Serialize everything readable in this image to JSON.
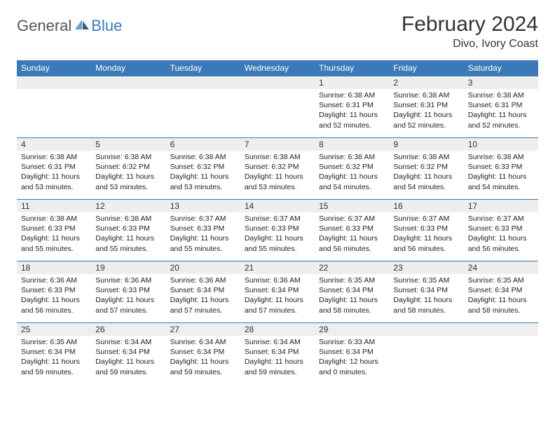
{
  "brand": {
    "general": "General",
    "blue": "Blue"
  },
  "title": "February 2024",
  "location": "Divo, Ivory Coast",
  "style": {
    "header_bg": "#3a7ab8",
    "header_fg": "#ffffff",
    "daynum_bg": "#eeeeee",
    "row_divider": "#3a7ab8",
    "title_fontsize": 30,
    "location_fontsize": 16,
    "th_fontsize": 12,
    "cell_fontsize": 10.5
  },
  "week_headers": [
    "Sunday",
    "Monday",
    "Tuesday",
    "Wednesday",
    "Thursday",
    "Friday",
    "Saturday"
  ],
  "weeks": [
    [
      null,
      null,
      null,
      null,
      {
        "n": "1",
        "sr": "6:38 AM",
        "ss": "6:31 PM",
        "dl": "11 hours and 52 minutes."
      },
      {
        "n": "2",
        "sr": "6:38 AM",
        "ss": "6:31 PM",
        "dl": "11 hours and 52 minutes."
      },
      {
        "n": "3",
        "sr": "6:38 AM",
        "ss": "6:31 PM",
        "dl": "11 hours and 52 minutes."
      }
    ],
    [
      {
        "n": "4",
        "sr": "6:38 AM",
        "ss": "6:31 PM",
        "dl": "11 hours and 53 minutes."
      },
      {
        "n": "5",
        "sr": "6:38 AM",
        "ss": "6:32 PM",
        "dl": "11 hours and 53 minutes."
      },
      {
        "n": "6",
        "sr": "6:38 AM",
        "ss": "6:32 PM",
        "dl": "11 hours and 53 minutes."
      },
      {
        "n": "7",
        "sr": "6:38 AM",
        "ss": "6:32 PM",
        "dl": "11 hours and 53 minutes."
      },
      {
        "n": "8",
        "sr": "6:38 AM",
        "ss": "6:32 PM",
        "dl": "11 hours and 54 minutes."
      },
      {
        "n": "9",
        "sr": "6:38 AM",
        "ss": "6:32 PM",
        "dl": "11 hours and 54 minutes."
      },
      {
        "n": "10",
        "sr": "6:38 AM",
        "ss": "6:33 PM",
        "dl": "11 hours and 54 minutes."
      }
    ],
    [
      {
        "n": "11",
        "sr": "6:38 AM",
        "ss": "6:33 PM",
        "dl": "11 hours and 55 minutes."
      },
      {
        "n": "12",
        "sr": "6:38 AM",
        "ss": "6:33 PM",
        "dl": "11 hours and 55 minutes."
      },
      {
        "n": "13",
        "sr": "6:37 AM",
        "ss": "6:33 PM",
        "dl": "11 hours and 55 minutes."
      },
      {
        "n": "14",
        "sr": "6:37 AM",
        "ss": "6:33 PM",
        "dl": "11 hours and 55 minutes."
      },
      {
        "n": "15",
        "sr": "6:37 AM",
        "ss": "6:33 PM",
        "dl": "11 hours and 56 minutes."
      },
      {
        "n": "16",
        "sr": "6:37 AM",
        "ss": "6:33 PM",
        "dl": "11 hours and 56 minutes."
      },
      {
        "n": "17",
        "sr": "6:37 AM",
        "ss": "6:33 PM",
        "dl": "11 hours and 56 minutes."
      }
    ],
    [
      {
        "n": "18",
        "sr": "6:36 AM",
        "ss": "6:33 PM",
        "dl": "11 hours and 56 minutes."
      },
      {
        "n": "19",
        "sr": "6:36 AM",
        "ss": "6:33 PM",
        "dl": "11 hours and 57 minutes."
      },
      {
        "n": "20",
        "sr": "6:36 AM",
        "ss": "6:34 PM",
        "dl": "11 hours and 57 minutes."
      },
      {
        "n": "21",
        "sr": "6:36 AM",
        "ss": "6:34 PM",
        "dl": "11 hours and 57 minutes."
      },
      {
        "n": "22",
        "sr": "6:35 AM",
        "ss": "6:34 PM",
        "dl": "11 hours and 58 minutes."
      },
      {
        "n": "23",
        "sr": "6:35 AM",
        "ss": "6:34 PM",
        "dl": "11 hours and 58 minutes."
      },
      {
        "n": "24",
        "sr": "6:35 AM",
        "ss": "6:34 PM",
        "dl": "11 hours and 58 minutes."
      }
    ],
    [
      {
        "n": "25",
        "sr": "6:35 AM",
        "ss": "6:34 PM",
        "dl": "11 hours and 59 minutes."
      },
      {
        "n": "26",
        "sr": "6:34 AM",
        "ss": "6:34 PM",
        "dl": "11 hours and 59 minutes."
      },
      {
        "n": "27",
        "sr": "6:34 AM",
        "ss": "6:34 PM",
        "dl": "11 hours and 59 minutes."
      },
      {
        "n": "28",
        "sr": "6:34 AM",
        "ss": "6:34 PM",
        "dl": "11 hours and 59 minutes."
      },
      {
        "n": "29",
        "sr": "6:33 AM",
        "ss": "6:34 PM",
        "dl": "12 hours and 0 minutes."
      },
      null,
      null
    ]
  ],
  "labels": {
    "sunrise": "Sunrise: ",
    "sunset": "Sunset: ",
    "daylight": "Daylight: "
  }
}
